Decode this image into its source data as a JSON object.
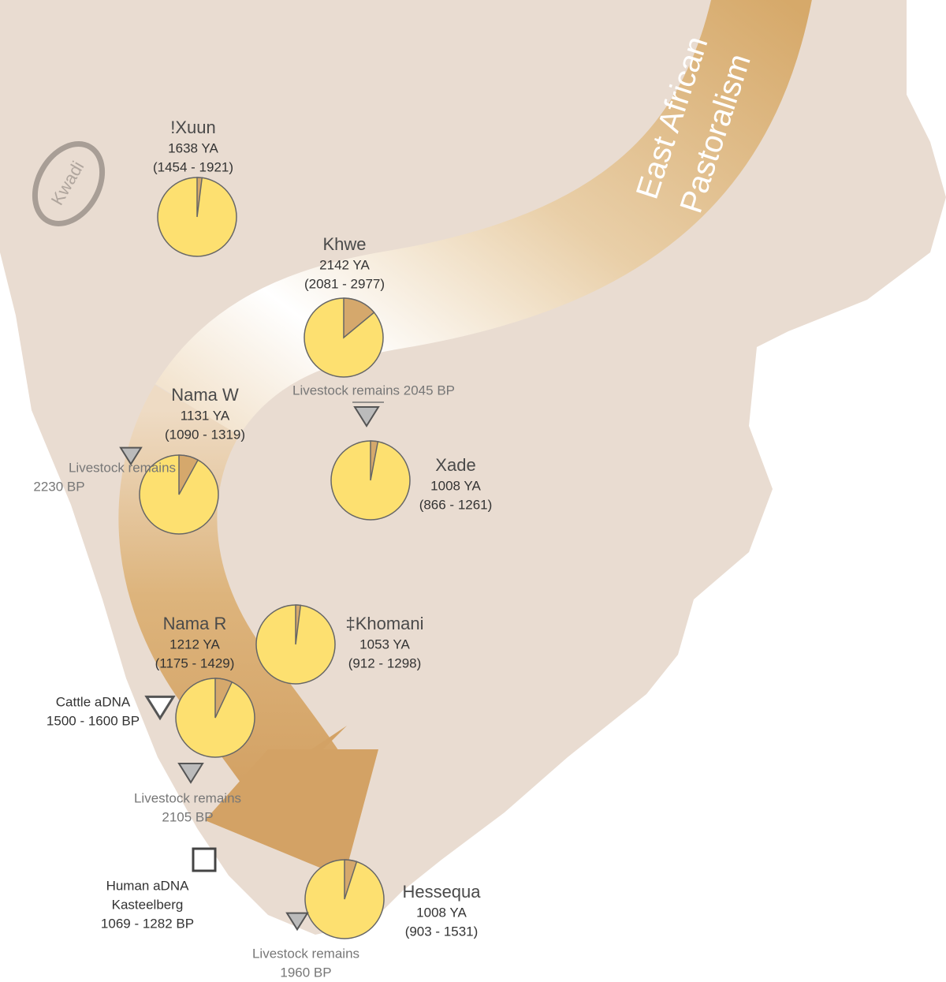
{
  "populations": [
    {
      "name": "!Xuun",
      "date": "1638 YA",
      "range": "(1454 - 1921)",
      "east_african_share": 2
    },
    {
      "name": "Khwe",
      "date": "2142 YA",
      "range": "(2081 - 2977)",
      "east_african_share": 14
    },
    {
      "name": "Nama W",
      "date": "1131 YA",
      "range": "(1090 - 1319)",
      "east_african_share": 8
    },
    {
      "name": "Xade",
      "date": "1008 YA",
      "range": "(866 - 1261)",
      "east_african_share": 3
    },
    {
      "name": "‡Khomani",
      "date": "1053 YA",
      "range": "(912 - 1298)",
      "east_african_share": 2
    },
    {
      "name": "Nama R",
      "date": "1212 YA",
      "range": "(1175 - 1429)",
      "east_african_share": 7
    },
    {
      "name": "Hessequa",
      "date": "1008 YA",
      "range": "(903 - 1531)",
      "east_african_share": 5
    }
  ],
  "markers": [
    {
      "lines": [
        "Livestock remains 2045 BP"
      ]
    },
    {
      "lines": [
        "Livestock remains",
        "2230 BP"
      ]
    },
    {
      "lines": [
        "Cattle aDNA",
        "1500 - 1600 BP"
      ]
    },
    {
      "lines": [
        "Livestock remains",
        "2105 BP"
      ]
    },
    {
      "lines": [
        "Human aDNA",
        "Kasteelberg",
        "1069 - 1282 BP"
      ]
    },
    {
      "lines": [
        "Livestock remains",
        "1960 BP"
      ]
    }
  ],
  "region_label": "Kwadi",
  "arrow_label": [
    "East African",
    "Pastoralism"
  ]
}
